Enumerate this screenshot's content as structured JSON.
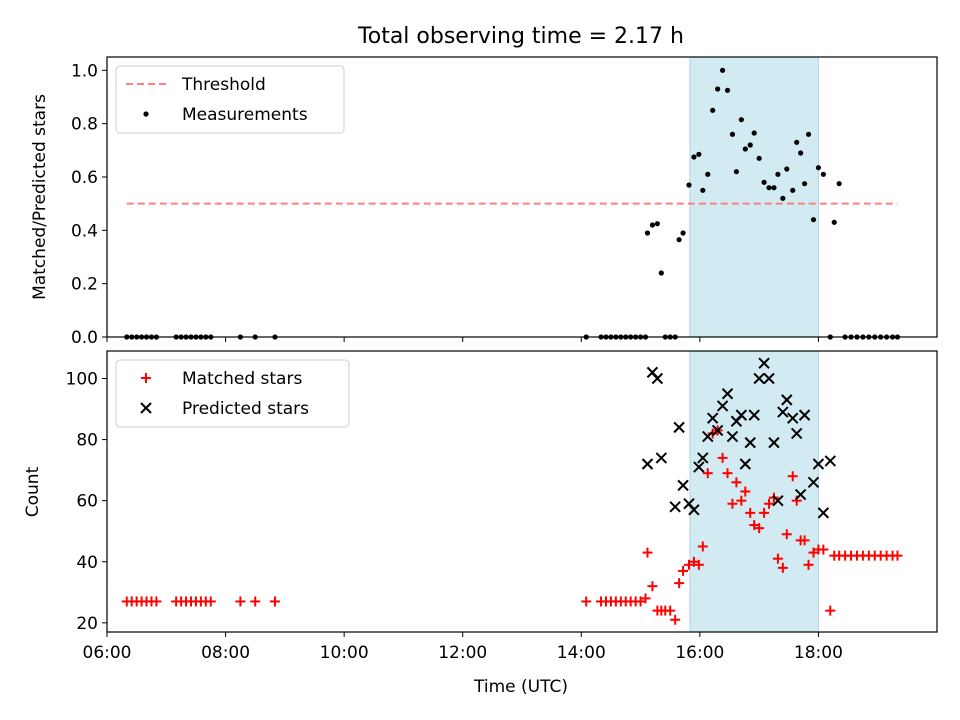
{
  "title": "Total observing time = 2.17 h",
  "xlabel": "Time (UTC)",
  "colors": {
    "threshold": "#ff7f7f",
    "span": "#add8e6",
    "matched": "#ff0000",
    "predicted": "#000000",
    "measurement": "#000000"
  },
  "chart_data": [
    {
      "type": "scatter",
      "ylabel": "Matched/Predicted stars",
      "xlim": [
        "06:00",
        "20:00"
      ],
      "ylim": [
        0,
        1.05
      ],
      "y_ticks": [
        "0.0",
        "0.2",
        "0.4",
        "0.6",
        "0.8",
        "1.0"
      ],
      "x_ticks": [
        "06:00",
        "08:00",
        "10:00",
        "12:00",
        "14:00",
        "16:00",
        "18:00"
      ],
      "legend": {
        "position": "upper-left",
        "entries": [
          "Threshold",
          "Measurements"
        ]
      },
      "highlight_span": {
        "start": "15:50",
        "end": "18:00"
      },
      "threshold": {
        "name": "Threshold",
        "value": 0.5,
        "x_start": "06:20",
        "x_end": "19:20"
      },
      "series": [
        {
          "name": "Measurements",
          "points": [
            [
              "06:20",
              0
            ],
            [
              "06:25",
              0
            ],
            [
              "06:30",
              0
            ],
            [
              "06:35",
              0
            ],
            [
              "06:40",
              0
            ],
            [
              "06:45",
              0
            ],
            [
              "06:50",
              0
            ],
            [
              "07:10",
              0
            ],
            [
              "07:15",
              0
            ],
            [
              "07:20",
              0
            ],
            [
              "07:25",
              0
            ],
            [
              "07:30",
              0
            ],
            [
              "07:35",
              0
            ],
            [
              "07:40",
              0
            ],
            [
              "07:45",
              0
            ],
            [
              "08:15",
              0
            ],
            [
              "08:30",
              0
            ],
            [
              "08:50",
              0
            ],
            [
              "14:05",
              0
            ],
            [
              "14:20",
              0
            ],
            [
              "14:25",
              0
            ],
            [
              "14:30",
              0
            ],
            [
              "14:35",
              0
            ],
            [
              "14:40",
              0
            ],
            [
              "14:45",
              0
            ],
            [
              "14:50",
              0
            ],
            [
              "14:55",
              0
            ],
            [
              "15:00",
              0
            ],
            [
              "15:05",
              0
            ],
            [
              "15:07",
              0.39
            ],
            [
              "15:12",
              0.42
            ],
            [
              "15:17",
              0.425
            ],
            [
              "15:21",
              0.24
            ],
            [
              "15:25",
              0
            ],
            [
              "15:30",
              0
            ],
            [
              "15:35",
              0
            ],
            [
              "15:39",
              0.365
            ],
            [
              "15:43",
              0.39
            ],
            [
              "15:49",
              0.57
            ],
            [
              "15:54",
              0.675
            ],
            [
              "15:59",
              0.685
            ],
            [
              "16:03",
              0.55
            ],
            [
              "16:08",
              0.61
            ],
            [
              "16:13",
              0.85
            ],
            [
              "16:18",
              0.93
            ],
            [
              "16:23",
              1.0
            ],
            [
              "16:28",
              0.925
            ],
            [
              "16:33",
              0.76
            ],
            [
              "16:37",
              0.62
            ],
            [
              "16:42",
              0.815
            ],
            [
              "16:46",
              0.705
            ],
            [
              "16:51",
              0.72
            ],
            [
              "16:55",
              0.765
            ],
            [
              "17:00",
              0.67
            ],
            [
              "17:05",
              0.58
            ],
            [
              "17:10",
              0.56
            ],
            [
              "17:15",
              0.56
            ],
            [
              "17:19",
              0.61
            ],
            [
              "17:24",
              0.52
            ],
            [
              "17:28",
              0.63
            ],
            [
              "17:34",
              0.55
            ],
            [
              "17:38",
              0.73
            ],
            [
              "17:42",
              0.69
            ],
            [
              "17:46",
              0.575
            ],
            [
              "17:50",
              0.76
            ],
            [
              "17:55",
              0.44
            ],
            [
              "18:00",
              0.635
            ],
            [
              "18:05",
              0.61
            ],
            [
              "18:12",
              0
            ],
            [
              "18:16",
              0.43
            ],
            [
              "18:21",
              0.575
            ],
            [
              "18:27",
              0
            ],
            [
              "18:33",
              0
            ],
            [
              "18:39",
              0
            ],
            [
              "18:45",
              0
            ],
            [
              "18:51",
              0
            ],
            [
              "18:57",
              0
            ],
            [
              "19:03",
              0
            ],
            [
              "19:09",
              0
            ],
            [
              "19:15",
              0
            ],
            [
              "19:20",
              0
            ]
          ]
        }
      ]
    },
    {
      "type": "scatter",
      "ylabel": "Count",
      "xlim": [
        "06:00",
        "20:00"
      ],
      "ylim": [
        17,
        109
      ],
      "y_ticks": [
        "20",
        "40",
        "60",
        "80",
        "100"
      ],
      "x_ticks": [
        "06:00",
        "08:00",
        "10:00",
        "12:00",
        "14:00",
        "16:00",
        "18:00"
      ],
      "legend": {
        "position": "upper-left",
        "entries": [
          "Matched stars",
          "Predicted stars"
        ]
      },
      "highlight_span": {
        "start": "15:50",
        "end": "18:00"
      },
      "series": [
        {
          "name": "Matched stars",
          "marker": "+",
          "points": [
            [
              "06:20",
              27
            ],
            [
              "06:25",
              27
            ],
            [
              "06:30",
              27
            ],
            [
              "06:35",
              27
            ],
            [
              "06:40",
              27
            ],
            [
              "06:45",
              27
            ],
            [
              "06:50",
              27
            ],
            [
              "07:10",
              27
            ],
            [
              "07:15",
              27
            ],
            [
              "07:20",
              27
            ],
            [
              "07:25",
              27
            ],
            [
              "07:30",
              27
            ],
            [
              "07:35",
              27
            ],
            [
              "07:40",
              27
            ],
            [
              "07:45",
              27
            ],
            [
              "08:15",
              27
            ],
            [
              "08:30",
              27
            ],
            [
              "08:50",
              27
            ],
            [
              "14:05",
              27
            ],
            [
              "14:20",
              27
            ],
            [
              "14:25",
              27
            ],
            [
              "14:30",
              27
            ],
            [
              "14:35",
              27
            ],
            [
              "14:40",
              27
            ],
            [
              "14:45",
              27
            ],
            [
              "14:50",
              27
            ],
            [
              "14:55",
              27
            ],
            [
              "15:00",
              27
            ],
            [
              "15:05",
              28
            ],
            [
              "15:07",
              43
            ],
            [
              "15:12",
              32
            ],
            [
              "15:17",
              24
            ],
            [
              "15:21",
              24
            ],
            [
              "15:25",
              24
            ],
            [
              "15:30",
              24
            ],
            [
              "15:35",
              21
            ],
            [
              "15:39",
              33
            ],
            [
              "15:43",
              37
            ],
            [
              "15:49",
              39
            ],
            [
              "15:54",
              40
            ],
            [
              "15:59",
              39
            ],
            [
              "16:03",
              45
            ],
            [
              "16:08",
              69
            ],
            [
              "16:13",
              82
            ],
            [
              "16:18",
              83
            ],
            [
              "16:23",
              74
            ],
            [
              "16:28",
              69
            ],
            [
              "16:33",
              59
            ],
            [
              "16:37",
              66
            ],
            [
              "16:42",
              60
            ],
            [
              "16:46",
              63
            ],
            [
              "16:51",
              56
            ],
            [
              "16:55",
              52
            ],
            [
              "17:00",
              51
            ],
            [
              "17:05",
              56
            ],
            [
              "17:10",
              59
            ],
            [
              "17:15",
              61
            ],
            [
              "17:19",
              41
            ],
            [
              "17:24",
              38
            ],
            [
              "17:28",
              49
            ],
            [
              "17:34",
              68
            ],
            [
              "17:38",
              60
            ],
            [
              "17:42",
              47
            ],
            [
              "17:46",
              47
            ],
            [
              "17:50",
              39
            ],
            [
              "17:55",
              43
            ],
            [
              "18:00",
              44
            ],
            [
              "18:05",
              44
            ],
            [
              "18:12",
              24
            ],
            [
              "18:16",
              42
            ],
            [
              "18:21",
              42
            ],
            [
              "18:27",
              42
            ],
            [
              "18:33",
              42
            ],
            [
              "18:39",
              42
            ],
            [
              "18:45",
              42
            ],
            [
              "18:51",
              42
            ],
            [
              "18:57",
              42
            ],
            [
              "19:03",
              42
            ],
            [
              "19:09",
              42
            ],
            [
              "19:15",
              42
            ],
            [
              "19:20",
              42
            ]
          ]
        },
        {
          "name": "Predicted stars",
          "marker": "x",
          "points": [
            [
              "15:07",
              72
            ],
            [
              "15:12",
              102
            ],
            [
              "15:17",
              100
            ],
            [
              "15:21",
              74
            ],
            [
              "15:35",
              58
            ],
            [
              "15:39",
              84
            ],
            [
              "15:43",
              65
            ],
            [
              "15:49",
              59
            ],
            [
              "15:54",
              57
            ],
            [
              "15:59",
              71
            ],
            [
              "16:03",
              74
            ],
            [
              "16:08",
              81
            ],
            [
              "16:13",
              87
            ],
            [
              "16:18",
              83
            ],
            [
              "16:23",
              91
            ],
            [
              "16:28",
              95
            ],
            [
              "16:33",
              81
            ],
            [
              "16:37",
              86
            ],
            [
              "16:42",
              88
            ],
            [
              "16:46",
              72
            ],
            [
              "16:51",
              79
            ],
            [
              "16:55",
              88
            ],
            [
              "17:00",
              100
            ],
            [
              "17:05",
              105
            ],
            [
              "17:10",
              100
            ],
            [
              "17:15",
              79
            ],
            [
              "17:19",
              60
            ],
            [
              "17:24",
              89
            ],
            [
              "17:28",
              93
            ],
            [
              "17:34",
              87
            ],
            [
              "17:38",
              82
            ],
            [
              "17:42",
              62
            ],
            [
              "17:46",
              88
            ],
            [
              "17:55",
              66
            ],
            [
              "18:00",
              72
            ],
            [
              "18:05",
              56
            ],
            [
              "18:12",
              73
            ]
          ]
        }
      ]
    }
  ]
}
